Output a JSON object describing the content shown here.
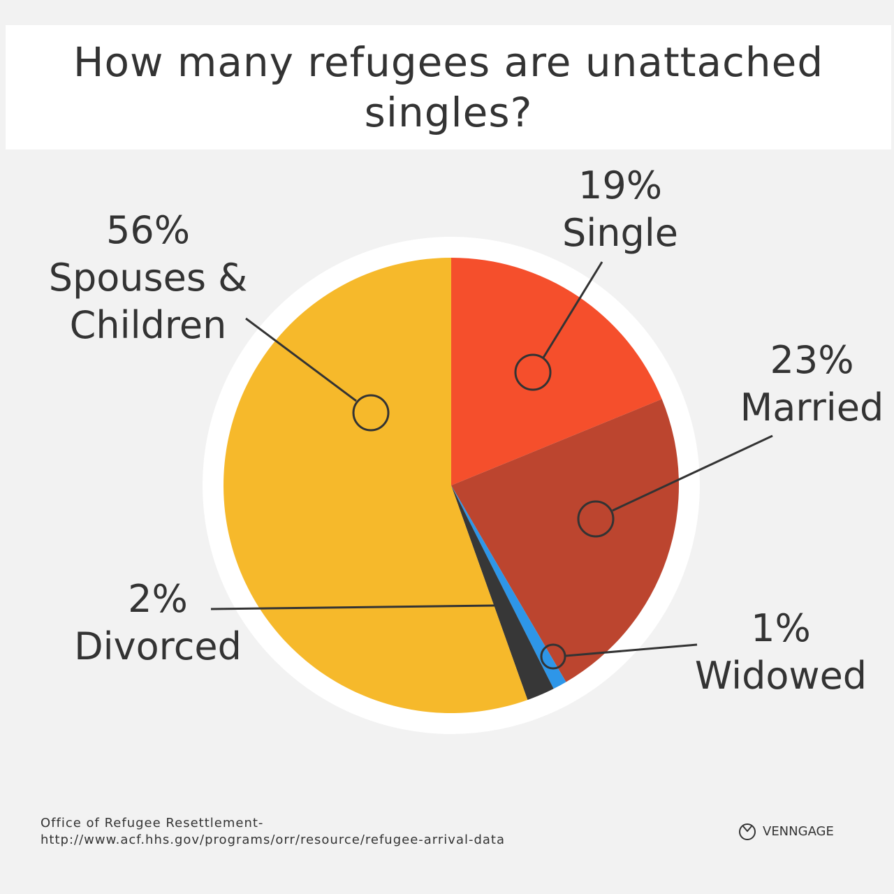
{
  "chart_data": {
    "type": "pie",
    "title": "How many refugees are unattached singles?",
    "slices": [
      {
        "label": "Single",
        "value": 19,
        "value_label": "19%",
        "color": "#F54F2C"
      },
      {
        "label": "Married",
        "value": 23,
        "value_label": "23%",
        "color": "#BC452F"
      },
      {
        "label": "Widowed",
        "value": 1,
        "value_label": "1%",
        "color": "#2E96E8"
      },
      {
        "label": "Divorced",
        "value": 2,
        "value_label": "2%",
        "color": "#373737"
      },
      {
        "label": "Spouses & Children",
        "value": 56,
        "value_label": "56%",
        "color": "#F6B92B"
      }
    ],
    "legend": "none"
  },
  "footer": {
    "source_line1": "Office of Refugee Resettlement-",
    "source_line2": "http://www.acf.hhs.gov/programs/orr/resource/refugee-arrival-data",
    "brand": "VENNGAGE"
  }
}
